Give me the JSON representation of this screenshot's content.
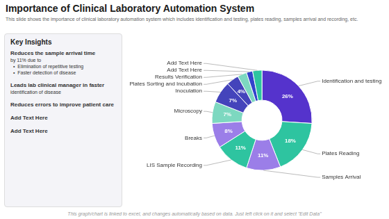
{
  "chart_data": {
    "type": "doughnut",
    "title": "Importance of Clinical Laboratory Automation System",
    "subtitle": "This slide shows the importance of clinical laboratory automation system which includes identification and testing, plates reading, samples arrival and recording, etc.",
    "categories": [
      "Identification and testing",
      "Plates Reading",
      "Samples Arrival",
      "LIS Sample Recording",
      "Breaks",
      "Microscopy",
      "Inoculation",
      "Plates Sorting and Incubation",
      "Results Verification",
      "Add Text Here",
      "Add Text Here"
    ],
    "values": [
      26,
      18,
      11,
      11,
      8,
      7,
      7,
      4,
      3,
      2,
      3
    ],
    "value_labels": [
      "26%",
      "18%",
      "11%",
      "11%",
      "8%",
      "7%",
      "7%",
      "4%",
      null,
      null,
      null
    ],
    "colors": [
      "#5533cc",
      "#2ec4a0",
      "#9b7ee8",
      "#2ec4a0",
      "#9b7ee8",
      "#7dd8c0",
      "#4444bb",
      "#4444bb",
      "#7dd8c0",
      "#3344cc",
      "#2ec4a0"
    ],
    "data_labels": true,
    "panel_title": "Key Insights",
    "insights": [
      "Reduces the sample arrival time\nby 11% due to\n  •  Elimination of repetitive testing\n  •  Faster detection of disease",
      "Leads lab clinical manager in faster\nidentification of disease",
      "Reduces errors to improve patient care",
      "Add Text Here",
      "Add Text Here"
    ],
    "footer": "This graph/chart is linked to excel, and changes automatically based on data. Just left click on it and select \"Edit Data\""
  }
}
